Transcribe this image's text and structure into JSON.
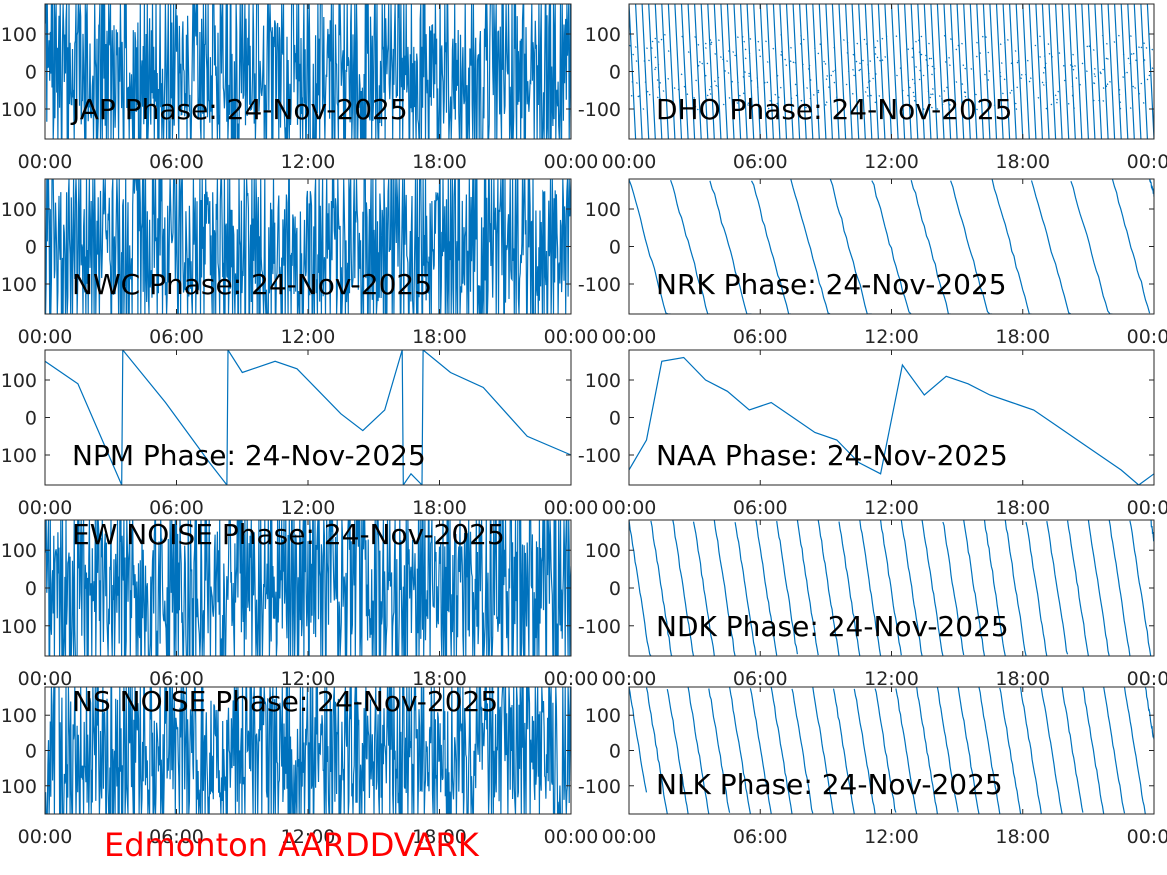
{
  "figure": {
    "footer_label": "Edmonton AARDDVARK",
    "footer_color": "#ff0000",
    "line_color": "#0072bd"
  },
  "chart_data": [
    {
      "type": "line",
      "title": "JAP Phase: 24-Nov-2025",
      "kind": "noise",
      "x_range_hours": [
        0,
        24
      ],
      "ylim": [
        -180,
        180
      ],
      "yticks": [
        -100,
        0,
        100
      ],
      "ytick_labels": [
        "-100",
        "0",
        "100"
      ],
      "xtick_labels": [
        "00:00",
        "06:00",
        "12:00",
        "18:00",
        "00:00"
      ]
    },
    {
      "type": "line",
      "title": "DHO Phase: 24-Nov-2025",
      "kind": "fast_wrap",
      "x_range_hours": [
        0,
        24
      ],
      "ylim": [
        -180,
        180
      ],
      "yticks": [
        -100,
        0,
        100
      ],
      "ytick_labels": [
        "-100",
        "0",
        "100"
      ],
      "xtick_labels": [
        "00:00",
        "06:00",
        "12:00",
        "18:00",
        "00:00"
      ]
    },
    {
      "type": "line",
      "title": "NWC Phase: 24-Nov-2025",
      "kind": "noise",
      "x_range_hours": [
        0,
        24
      ],
      "ylim": [
        -180,
        180
      ],
      "yticks": [
        -100,
        0,
        100
      ],
      "ytick_labels": [
        "-100",
        "0",
        "100"
      ],
      "xtick_labels": [
        "00:00",
        "06:00",
        "12:00",
        "18:00",
        "00:00"
      ]
    },
    {
      "type": "line",
      "title": "NRK Phase: 24-Nov-2025",
      "kind": "sawtooth",
      "x_range_hours": [
        0,
        24
      ],
      "ylim": [
        -180,
        180
      ],
      "yticks": [
        -100,
        0,
        100
      ],
      "ytick_labels": [
        "-100",
        "0",
        "100"
      ],
      "xtick_labels": [
        "00:00",
        "06:00",
        "12:00",
        "18:00",
        "00:00"
      ],
      "wrap_hours": [
        1.9,
        3.7,
        5.6,
        7.4,
        9.2,
        11.1,
        12.9,
        14.7,
        16.6,
        18.4,
        20.2,
        22.1,
        23.8
      ],
      "slope_deg_per_hour": -210
    },
    {
      "type": "line",
      "title": "NPM Phase: 24-Nov-2025",
      "kind": "points",
      "x_range_hours": [
        0,
        24
      ],
      "ylim": [
        -180,
        180
      ],
      "yticks": [
        -100,
        0,
        100
      ],
      "ytick_labels": [
        "-100",
        "0",
        "100"
      ],
      "xtick_labels": [
        "00:00",
        "06:00",
        "12:00",
        "18:00",
        "00:00"
      ],
      "x": [
        0,
        1.5,
        3.5,
        3.55,
        5.5,
        7.5,
        8.3,
        8.35,
        9,
        10.5,
        11.5,
        12.5,
        13.5,
        14.5,
        15.5,
        16.3,
        16.35,
        16.7,
        17.2,
        17.25,
        18.5,
        20,
        22,
        24
      ],
      "y": [
        150,
        90,
        -180,
        180,
        40,
        -120,
        -180,
        180,
        120,
        150,
        130,
        70,
        10,
        -35,
        20,
        180,
        -180,
        -150,
        -180,
        180,
        120,
        80,
        -50,
        -100
      ]
    },
    {
      "type": "line",
      "title": "NAA Phase: 24-Nov-2025",
      "kind": "points",
      "x_range_hours": [
        0,
        24
      ],
      "ylim": [
        -180,
        180
      ],
      "yticks": [
        -100,
        0,
        100
      ],
      "ytick_labels": [
        "-100",
        "0",
        "100"
      ],
      "xtick_labels": [
        "00:00",
        "06:00",
        "12:00",
        "18:00",
        "00:00"
      ],
      "x": [
        0,
        0.8,
        1.5,
        2.5,
        3.5,
        4.5,
        5.5,
        6.5,
        7.5,
        8.5,
        9.5,
        10.5,
        11.5,
        12.5,
        13.5,
        14.5,
        15.5,
        16.5,
        17.5,
        18.5,
        19.5,
        20.5,
        21.5,
        22.5,
        23.3,
        24
      ],
      "y": [
        -140,
        -60,
        150,
        160,
        100,
        70,
        20,
        40,
        0,
        -40,
        -60,
        -120,
        -150,
        140,
        60,
        110,
        90,
        60,
        40,
        20,
        -20,
        -60,
        -100,
        -140,
        -180,
        -150
      ]
    },
    {
      "type": "line",
      "title": "EW NOISE Phase: 24-Nov-2025",
      "kind": "noise",
      "x_range_hours": [
        0,
        24
      ],
      "ylim": [
        -180,
        180
      ],
      "yticks": [
        -100,
        0,
        100
      ],
      "ytick_labels": [
        "-100",
        "0",
        "100"
      ],
      "xtick_labels": [
        "00:00",
        "06:00",
        "12:00",
        "18:00",
        "00:00"
      ]
    },
    {
      "type": "line",
      "title": "NDK Phase: 24-Nov-2025",
      "kind": "sawtooth",
      "x_range_hours": [
        0,
        24
      ],
      "ylim": [
        -180,
        180
      ],
      "yticks": [
        -100,
        0,
        100
      ],
      "ytick_labels": [
        "-100",
        "0",
        "100"
      ],
      "xtick_labels": [
        "00:00",
        "06:00",
        "12:00",
        "18:00",
        "00:00"
      ],
      "wrap_hours": [
        1.0,
        2.0,
        2.95,
        3.9,
        4.85,
        5.8,
        6.75,
        7.7,
        8.65,
        9.6,
        10.55,
        11.5,
        12.45,
        13.4,
        14.35,
        15.3,
        16.25,
        17.2,
        18.15,
        19.1,
        20.05,
        21.0,
        21.95,
        22.9,
        23.85
      ],
      "slope_deg_per_hour": -380
    },
    {
      "type": "line",
      "title": "NS NOISE Phase: 24-Nov-2025",
      "kind": "noise",
      "x_range_hours": [
        0,
        24
      ],
      "ylim": [
        -180,
        180
      ],
      "yticks": [
        -100,
        0,
        100
      ],
      "ytick_labels": [
        "-100",
        "0",
        "100"
      ],
      "xtick_labels": [
        "00:00",
        "06:00",
        "12:00",
        "18:00",
        "00:00"
      ]
    },
    {
      "type": "line",
      "title": "NLK Phase: 24-Nov-2025",
      "kind": "sawtooth",
      "x_range_hours": [
        0,
        24
      ],
      "ylim": [
        -180,
        180
      ],
      "yticks": [
        -100,
        0,
        100
      ],
      "ytick_labels": [
        "-100",
        "0",
        "100"
      ],
      "xtick_labels": [
        "00:00",
        "06:00",
        "12:00",
        "18:00",
        "00:00"
      ],
      "wrap_hours": [
        0.8,
        1.75,
        2.7,
        3.65,
        4.6,
        5.55,
        6.5,
        7.45,
        8.4,
        9.35,
        10.3,
        11.25,
        12.2,
        13.15,
        14.1,
        15.05,
        16.0,
        16.95,
        17.9,
        18.85,
        19.8,
        20.75,
        21.7,
        22.65,
        23.6
      ],
      "slope_deg_per_hour": -380
    }
  ]
}
